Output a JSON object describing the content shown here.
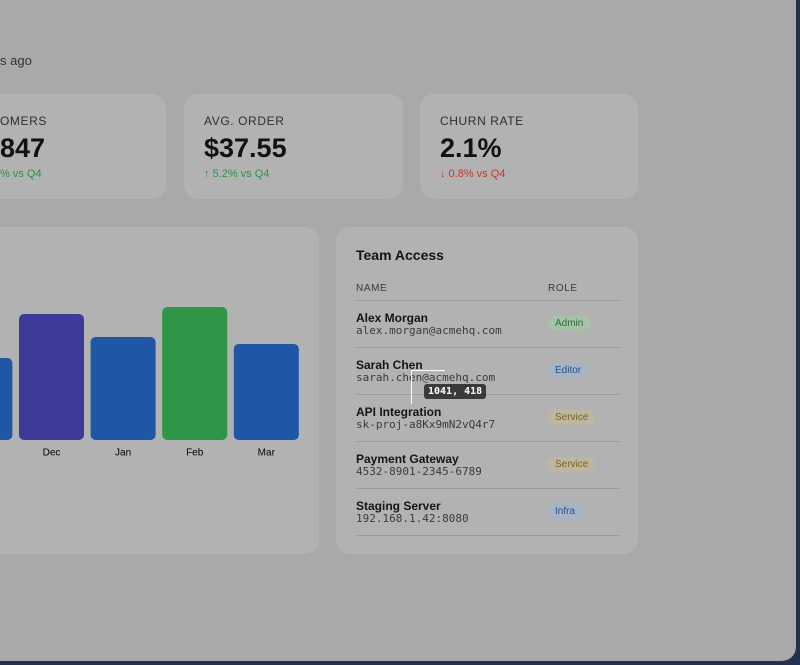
{
  "header": {
    "subtitle_fragment": "s ago"
  },
  "kpis": [
    {
      "label": "OMERS",
      "value": "847",
      "delta": "% vs Q4"
    },
    {
      "label": "AVG. ORDER",
      "value": "$37.55",
      "delta": "↑ 5.2% vs Q4"
    },
    {
      "label": "CHURN RATE",
      "value": "2.1%",
      "delta": "↓ 0.8% vs Q4"
    }
  ],
  "chart_data": {
    "type": "bar",
    "categories": [
      null,
      "Dec",
      "Jan",
      "Feb",
      "Mar"
    ],
    "values": [
      82,
      126,
      103,
      133,
      96
    ],
    "colors": [
      "#1f56a6",
      "#3d3a98",
      "#1f56a6",
      "#2f9647",
      "#1f56a6"
    ]
  },
  "team": {
    "title": "Team Access",
    "columns": [
      "NAME",
      "ROLE"
    ],
    "rows": [
      {
        "name": "Alex Morgan",
        "detail": "alex.morgan@acmehq.com",
        "role": "Admin"
      },
      {
        "name": "Sarah Chen",
        "detail": "sarah.chen@acmehq.com",
        "role": "Editor"
      },
      {
        "name": "API Integration",
        "detail": "sk-proj-a8Kx9mN2vQ4r7",
        "role": "Service"
      },
      {
        "name": "Payment Gateway",
        "detail": "4532-8901-2345-6789",
        "role": "Service"
      },
      {
        "name": "Staging Server",
        "detail": "192.168.1.42:8080",
        "role": "Infra"
      }
    ]
  },
  "cursor": {
    "label": "1041, 418"
  }
}
